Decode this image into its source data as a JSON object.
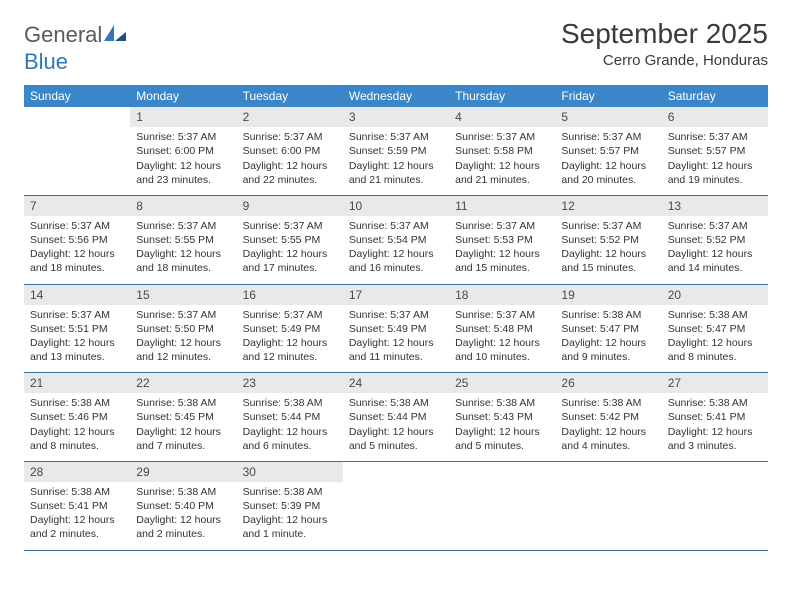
{
  "brand": {
    "general": "General",
    "blue": "Blue"
  },
  "title": "September 2025",
  "location": "Cerro Grande, Honduras",
  "colors": {
    "header_bg": "#3a86c8",
    "header_text": "#ffffff",
    "daynum_bg": "#e8e9ea",
    "row_border": "#3a6fa0",
    "logo_gray": "#555b61",
    "logo_blue": "#2f78b9",
    "text": "#333333",
    "background": "#ffffff"
  },
  "day_headers": [
    "Sunday",
    "Monday",
    "Tuesday",
    "Wednesday",
    "Thursday",
    "Friday",
    "Saturday"
  ],
  "weeks": [
    [
      {
        "blank": true
      },
      {
        "day": "1",
        "sunrise": "Sunrise: 5:37 AM",
        "sunset": "Sunset: 6:00 PM",
        "daylight": "Daylight: 12 hours and 23 minutes."
      },
      {
        "day": "2",
        "sunrise": "Sunrise: 5:37 AM",
        "sunset": "Sunset: 6:00 PM",
        "daylight": "Daylight: 12 hours and 22 minutes."
      },
      {
        "day": "3",
        "sunrise": "Sunrise: 5:37 AM",
        "sunset": "Sunset: 5:59 PM",
        "daylight": "Daylight: 12 hours and 21 minutes."
      },
      {
        "day": "4",
        "sunrise": "Sunrise: 5:37 AM",
        "sunset": "Sunset: 5:58 PM",
        "daylight": "Daylight: 12 hours and 21 minutes."
      },
      {
        "day": "5",
        "sunrise": "Sunrise: 5:37 AM",
        "sunset": "Sunset: 5:57 PM",
        "daylight": "Daylight: 12 hours and 20 minutes."
      },
      {
        "day": "6",
        "sunrise": "Sunrise: 5:37 AM",
        "sunset": "Sunset: 5:57 PM",
        "daylight": "Daylight: 12 hours and 19 minutes."
      }
    ],
    [
      {
        "day": "7",
        "sunrise": "Sunrise: 5:37 AM",
        "sunset": "Sunset: 5:56 PM",
        "daylight": "Daylight: 12 hours and 18 minutes."
      },
      {
        "day": "8",
        "sunrise": "Sunrise: 5:37 AM",
        "sunset": "Sunset: 5:55 PM",
        "daylight": "Daylight: 12 hours and 18 minutes."
      },
      {
        "day": "9",
        "sunrise": "Sunrise: 5:37 AM",
        "sunset": "Sunset: 5:55 PM",
        "daylight": "Daylight: 12 hours and 17 minutes."
      },
      {
        "day": "10",
        "sunrise": "Sunrise: 5:37 AM",
        "sunset": "Sunset: 5:54 PM",
        "daylight": "Daylight: 12 hours and 16 minutes."
      },
      {
        "day": "11",
        "sunrise": "Sunrise: 5:37 AM",
        "sunset": "Sunset: 5:53 PM",
        "daylight": "Daylight: 12 hours and 15 minutes."
      },
      {
        "day": "12",
        "sunrise": "Sunrise: 5:37 AM",
        "sunset": "Sunset: 5:52 PM",
        "daylight": "Daylight: 12 hours and 15 minutes."
      },
      {
        "day": "13",
        "sunrise": "Sunrise: 5:37 AM",
        "sunset": "Sunset: 5:52 PM",
        "daylight": "Daylight: 12 hours and 14 minutes."
      }
    ],
    [
      {
        "day": "14",
        "sunrise": "Sunrise: 5:37 AM",
        "sunset": "Sunset: 5:51 PM",
        "daylight": "Daylight: 12 hours and 13 minutes."
      },
      {
        "day": "15",
        "sunrise": "Sunrise: 5:37 AM",
        "sunset": "Sunset: 5:50 PM",
        "daylight": "Daylight: 12 hours and 12 minutes."
      },
      {
        "day": "16",
        "sunrise": "Sunrise: 5:37 AM",
        "sunset": "Sunset: 5:49 PM",
        "daylight": "Daylight: 12 hours and 12 minutes."
      },
      {
        "day": "17",
        "sunrise": "Sunrise: 5:37 AM",
        "sunset": "Sunset: 5:49 PM",
        "daylight": "Daylight: 12 hours and 11 minutes."
      },
      {
        "day": "18",
        "sunrise": "Sunrise: 5:37 AM",
        "sunset": "Sunset: 5:48 PM",
        "daylight": "Daylight: 12 hours and 10 minutes."
      },
      {
        "day": "19",
        "sunrise": "Sunrise: 5:38 AM",
        "sunset": "Sunset: 5:47 PM",
        "daylight": "Daylight: 12 hours and 9 minutes."
      },
      {
        "day": "20",
        "sunrise": "Sunrise: 5:38 AM",
        "sunset": "Sunset: 5:47 PM",
        "daylight": "Daylight: 12 hours and 8 minutes."
      }
    ],
    [
      {
        "day": "21",
        "sunrise": "Sunrise: 5:38 AM",
        "sunset": "Sunset: 5:46 PM",
        "daylight": "Daylight: 12 hours and 8 minutes."
      },
      {
        "day": "22",
        "sunrise": "Sunrise: 5:38 AM",
        "sunset": "Sunset: 5:45 PM",
        "daylight": "Daylight: 12 hours and 7 minutes."
      },
      {
        "day": "23",
        "sunrise": "Sunrise: 5:38 AM",
        "sunset": "Sunset: 5:44 PM",
        "daylight": "Daylight: 12 hours and 6 minutes."
      },
      {
        "day": "24",
        "sunrise": "Sunrise: 5:38 AM",
        "sunset": "Sunset: 5:44 PM",
        "daylight": "Daylight: 12 hours and 5 minutes."
      },
      {
        "day": "25",
        "sunrise": "Sunrise: 5:38 AM",
        "sunset": "Sunset: 5:43 PM",
        "daylight": "Daylight: 12 hours and 5 minutes."
      },
      {
        "day": "26",
        "sunrise": "Sunrise: 5:38 AM",
        "sunset": "Sunset: 5:42 PM",
        "daylight": "Daylight: 12 hours and 4 minutes."
      },
      {
        "day": "27",
        "sunrise": "Sunrise: 5:38 AM",
        "sunset": "Sunset: 5:41 PM",
        "daylight": "Daylight: 12 hours and 3 minutes."
      }
    ],
    [
      {
        "day": "28",
        "sunrise": "Sunrise: 5:38 AM",
        "sunset": "Sunset: 5:41 PM",
        "daylight": "Daylight: 12 hours and 2 minutes."
      },
      {
        "day": "29",
        "sunrise": "Sunrise: 5:38 AM",
        "sunset": "Sunset: 5:40 PM",
        "daylight": "Daylight: 12 hours and 2 minutes."
      },
      {
        "day": "30",
        "sunrise": "Sunrise: 5:38 AM",
        "sunset": "Sunset: 5:39 PM",
        "daylight": "Daylight: 12 hours and 1 minute."
      },
      {
        "blank": true
      },
      {
        "blank": true
      },
      {
        "blank": true
      },
      {
        "blank": true
      }
    ]
  ]
}
